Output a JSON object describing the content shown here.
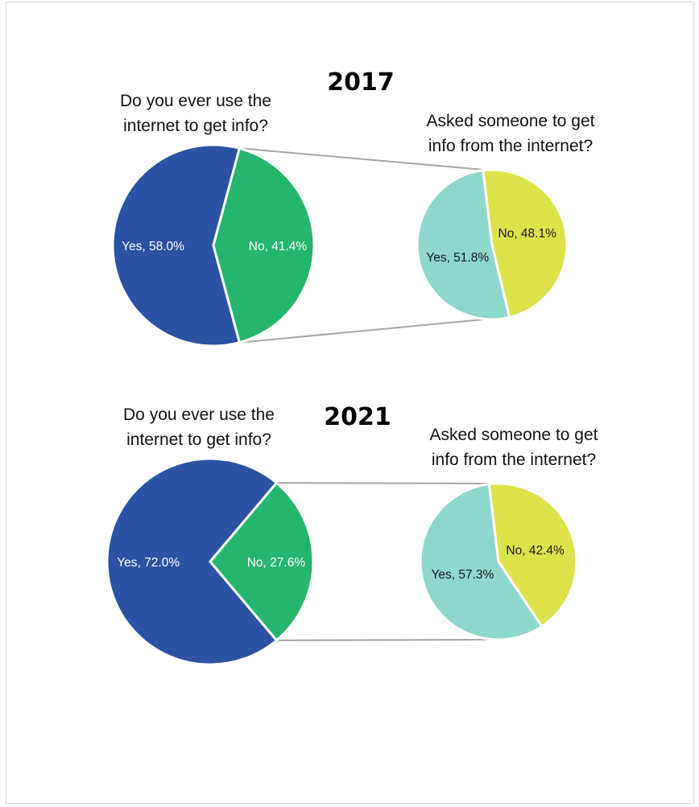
{
  "colors": {
    "main_yes": "#2B52A3",
    "main_no": "#25B56E",
    "sub_yes": "#8FD6CC",
    "sub_no": "#DCE24A",
    "connector": "#a6a6a6"
  },
  "chart_data": [
    {
      "type": "pie",
      "title": "2017",
      "main": {
        "question": [
          "Do you ever use the",
          "internet to get info?"
        ],
        "slices": [
          {
            "label": "Yes",
            "value": 58.0,
            "text": "Yes, 58.0%"
          },
          {
            "label": "No",
            "value": 41.4,
            "text": "No, 41.4%"
          }
        ]
      },
      "sub": {
        "question": [
          "Asked someone to get",
          "info from the internet?"
        ],
        "slices": [
          {
            "label": "Yes",
            "value": 51.8,
            "text": "Yes, 51.8%"
          },
          {
            "label": "No",
            "value": 48.1,
            "text": "No, 48.1%"
          }
        ]
      }
    },
    {
      "type": "pie",
      "title": "2021",
      "main": {
        "question": [
          "Do you ever use the",
          "internet to get info?"
        ],
        "slices": [
          {
            "label": "Yes",
            "value": 72.0,
            "text": "Yes, 72.0%"
          },
          {
            "label": "No",
            "value": 27.6,
            "text": "No, 27.6%"
          }
        ]
      },
      "sub": {
        "question": [
          "Asked someone to get",
          "info from the internet?"
        ],
        "slices": [
          {
            "label": "Yes",
            "value": 57.3,
            "text": "Yes, 57.3%"
          },
          {
            "label": "No",
            "value": 42.4,
            "text": "No, 42.4%"
          }
        ]
      }
    }
  ]
}
